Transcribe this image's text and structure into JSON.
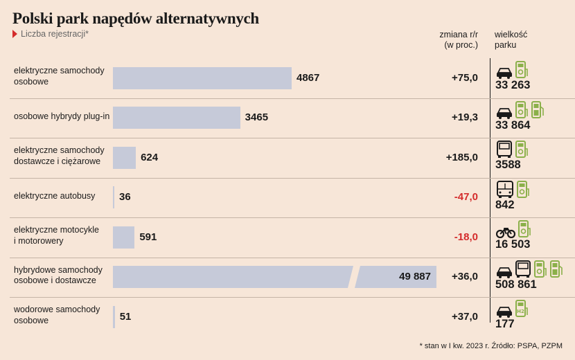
{
  "title": "Polski park napędów alternatywnych",
  "subtitle": "Liczba rejestracji*",
  "header": {
    "change_line1": "zmiana r/r",
    "change_line2": "(w proc.)",
    "fleet_line1": "wielkość",
    "fleet_line2": "parku"
  },
  "footnote": "* stan w I kw. 2023 r. Źródło: PSPA, PZPM",
  "colors": {
    "bar": "#c6cad9",
    "negative": "#d42b2b",
    "icon_green": "#8bb04a",
    "background": "#f7e6d8"
  },
  "chart_data": {
    "type": "bar",
    "orientation": "horizontal",
    "categories": [
      "elektryczne samochody osobowe",
      "osobowe hybrydy plug-in",
      "elektryczne samochody dostawcze i ciężarowe",
      "elektryczne autobusy",
      "elektryczne motocykle i motorowery",
      "hybrydowe samochody osobowe i dostawcze",
      "wodorowe samochody osobowe"
    ],
    "label_lines": [
      [
        "elektryczne samochody",
        "osobowe"
      ],
      [
        "osobowe hybrydy plug-in"
      ],
      [
        "elektryczne samochody",
        "dostawcze i ciężarowe"
      ],
      [
        "elektryczne autobusy"
      ],
      [
        "elektryczne motocykle",
        "i motorowery"
      ],
      [
        "hybrydowe samochody",
        "osobowe i dostawcze"
      ],
      [
        "wodorowe samochody",
        "osobowe"
      ]
    ],
    "values": [
      4867,
      3465,
      624,
      36,
      591,
      49887,
      51
    ],
    "value_labels": [
      "4867",
      "3465",
      "624",
      "36",
      "591",
      "49 887",
      "51"
    ],
    "broken_axis": [
      false,
      false,
      false,
      false,
      false,
      true,
      false
    ],
    "change_yoy": [
      "+75,0",
      "+19,3",
      "+185,0",
      "-47,0",
      "-18,0",
      "+36,0",
      "+37,0"
    ],
    "fleet_size": [
      "33 263",
      "33 864",
      "3588",
      "842",
      "16 503",
      "508 861",
      "177"
    ],
    "icons": [
      [
        "car-icon",
        "charger-plug-icon"
      ],
      [
        "car-icon",
        "charger-plug-icon",
        "fuel-pump-icon"
      ],
      [
        "truck-icon",
        "charger-plug-icon"
      ],
      [
        "bus-icon",
        "charger-plug-icon"
      ],
      [
        "motorcycle-icon",
        "charger-plug-icon"
      ],
      [
        "car-icon",
        "truck-icon",
        "charger-plug-icon",
        "fuel-pump-icon"
      ],
      [
        "car-icon",
        "hydrogen-icon"
      ]
    ],
    "xlim": [
      0,
      5200
    ]
  }
}
